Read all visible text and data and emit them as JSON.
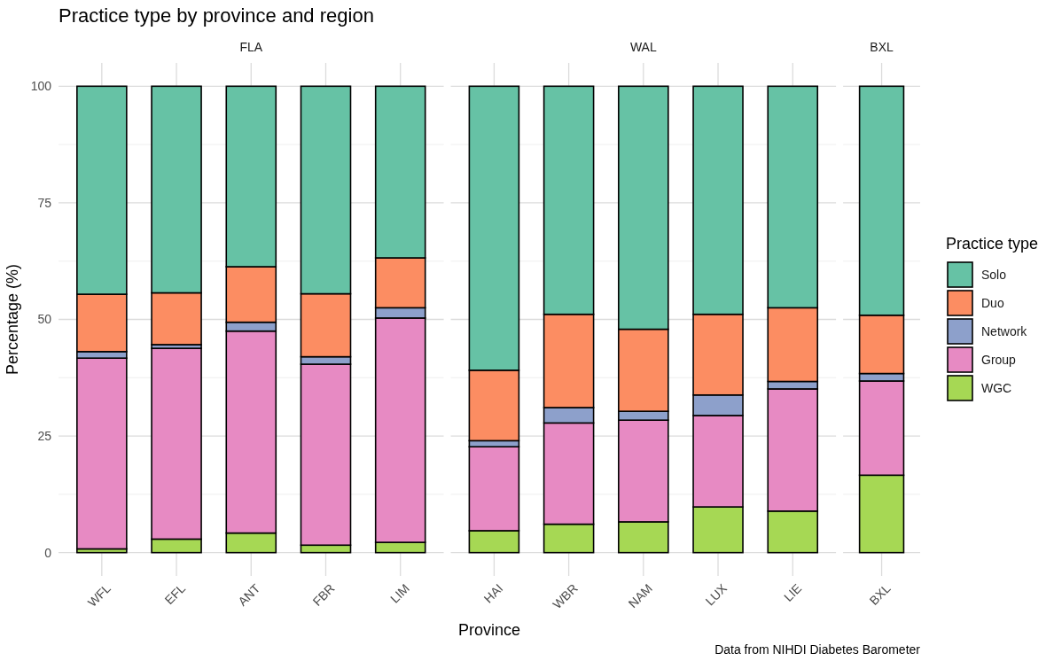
{
  "chart_data": [
    {
      "type": "bar",
      "stacked": true,
      "title": "Practice type by province and region",
      "subtitle": "FLA",
      "ylabel": "Percentage (%)",
      "categories": [
        "WFL",
        "EFL",
        "ANT",
        "FBR",
        "LIM"
      ],
      "ylim": [
        -5,
        105
      ],
      "yticks": [
        0,
        25,
        50,
        75,
        100
      ],
      "grid": true,
      "series": [
        {
          "color": "#a6d854",
          "values": [
            0.8,
            2.9,
            4.2,
            1.6,
            2.2
          ]
        },
        {
          "color": "#e78ac3",
          "values": [
            40.9,
            40.9,
            43.3,
            38.8,
            48.1
          ]
        },
        {
          "color": "#8da0cb",
          "values": [
            1.4,
            0.8,
            1.9,
            1.6,
            2.2
          ]
        },
        {
          "color": "#fc8d62",
          "values": [
            12.3,
            11.1,
            11.9,
            13.5,
            10.7
          ]
        },
        {
          "color": "#66c2a5",
          "values": [
            44.6,
            44.3,
            38.7,
            44.5,
            36.8
          ]
        }
      ]
    },
    {
      "type": "bar",
      "stacked": true,
      "subtitle": "WAL",
      "xlabel": "Province",
      "categories": [
        "HAI",
        "WBR",
        "NAM",
        "LUX",
        "LIE"
      ],
      "ylim": [
        -5,
        105
      ],
      "yticks": [
        0,
        25,
        50,
        75,
        100
      ],
      "grid": true,
      "tick_labels": "x",
      "series": [
        {
          "color": "#a6d854",
          "values": [
            4.7,
            6.1,
            6.6,
            9.8,
            8.9
          ]
        },
        {
          "color": "#e78ac3",
          "values": [
            18.0,
            21.7,
            21.8,
            19.6,
            26.2
          ]
        },
        {
          "color": "#8da0cb",
          "values": [
            1.3,
            3.3,
            1.9,
            4.4,
            1.6
          ]
        },
        {
          "color": "#fc8d62",
          "values": [
            15.1,
            20.0,
            17.6,
            17.3,
            15.8
          ]
        },
        {
          "color": "#66c2a5",
          "values": [
            60.9,
            48.9,
            52.1,
            48.9,
            47.5
          ]
        }
      ]
    },
    {
      "type": "bar",
      "stacked": true,
      "subtitle": "BXL",
      "categories": [
        "BXL"
      ],
      "ylim": [
        -5,
        105
      ],
      "yticks": [
        0,
        25,
        50,
        75,
        100
      ],
      "grid": true,
      "tick_labels": "x",
      "legend": "right",
      "legend_title": "Practice type",
      "annotations": [
        "Data from NIHDI Diabetes Barometer"
      ],
      "series": [
        {
          "name": "WGC",
          "color": "#a6d854",
          "values": [
            16.6
          ]
        },
        {
          "name": "Group",
          "color": "#e78ac3",
          "values": [
            20.2
          ]
        },
        {
          "name": "Network",
          "color": "#8da0cb",
          "values": [
            1.6
          ]
        },
        {
          "name": "Duo",
          "color": "#fc8d62",
          "values": [
            12.5
          ]
        },
        {
          "name": "Solo",
          "color": "#66c2a5",
          "values": [
            49.1
          ]
        }
      ]
    }
  ]
}
